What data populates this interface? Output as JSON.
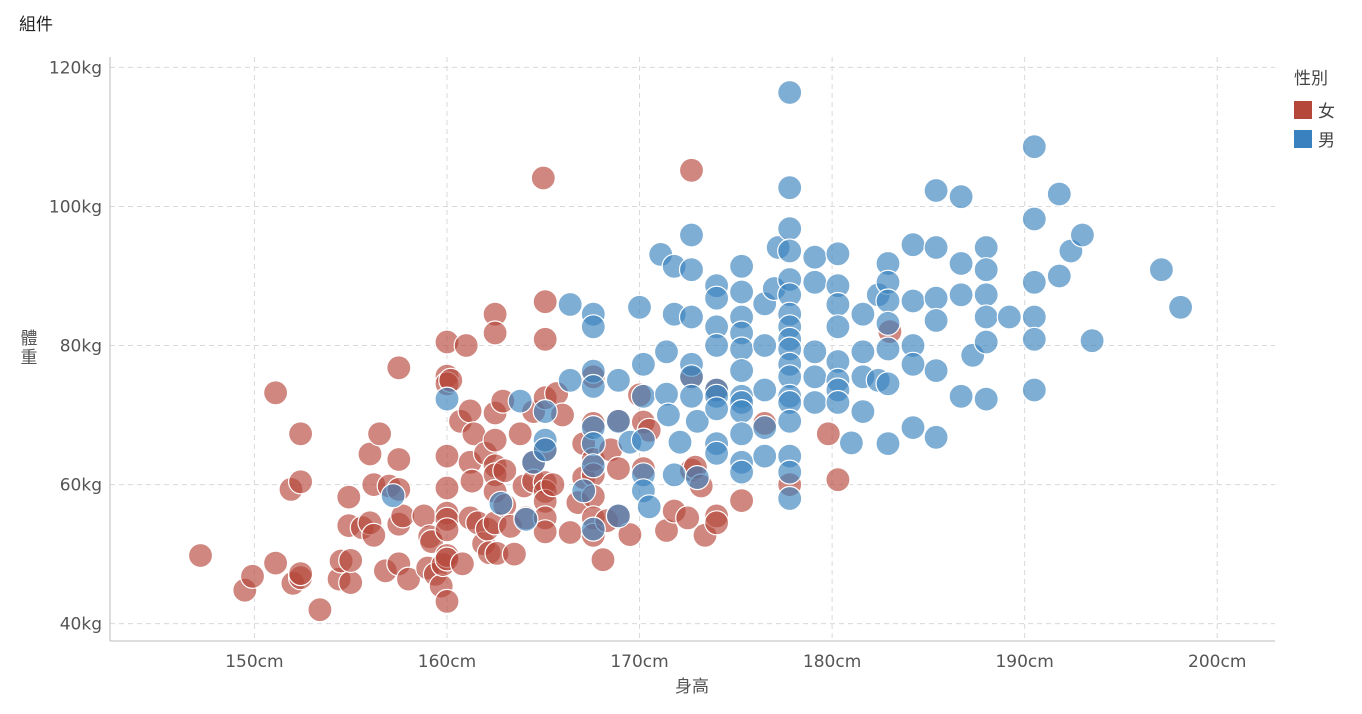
{
  "title": "組件",
  "chart_data": {
    "type": "scatter",
    "xlabel": "身高",
    "ylabel": "體重",
    "x_unit": "cm",
    "y_unit": "kg",
    "xlim": [
      142.5,
      203
    ],
    "ylim": [
      37.5,
      121.5
    ],
    "xticks": [
      150,
      160,
      170,
      180,
      190,
      200
    ],
    "yticks": [
      40,
      60,
      80,
      100,
      120
    ],
    "xtick_labels": [
      "150cm",
      "160cm",
      "170cm",
      "180cm",
      "190cm",
      "200cm"
    ],
    "ytick_labels": [
      "40kg",
      "60kg",
      "80kg",
      "100kg",
      "120kg"
    ],
    "grid": true,
    "legend": {
      "title": "性別",
      "position": "right"
    },
    "series": [
      {
        "name": "女",
        "color": "#b5473a",
        "points": [
          [
            147.2,
            49.8
          ],
          [
            149.5,
            44.8
          ],
          [
            149.9,
            46.8
          ],
          [
            151.1,
            48.7
          ],
          [
            151.1,
            73.2
          ],
          [
            151.9,
            59.3
          ],
          [
            152.0,
            45.8
          ],
          [
            152.4,
            67.3
          ],
          [
            152.4,
            60.4
          ],
          [
            152.4,
            46.6
          ],
          [
            152.4,
            47.2
          ],
          [
            153.4,
            42.0
          ],
          [
            154.4,
            46.4
          ],
          [
            154.5,
            49.0
          ],
          [
            154.9,
            58.2
          ],
          [
            154.9,
            54.1
          ],
          [
            155.0,
            45.9
          ],
          [
            155.0,
            49.1
          ],
          [
            155.6,
            53.8
          ],
          [
            156.0,
            64.4
          ],
          [
            156.0,
            54.5
          ],
          [
            156.2,
            60.0
          ],
          [
            156.2,
            52.7
          ],
          [
            156.5,
            67.3
          ],
          [
            156.8,
            47.6
          ],
          [
            157.0,
            59.8
          ],
          [
            157.5,
            76.8
          ],
          [
            157.5,
            63.6
          ],
          [
            157.5,
            54.3
          ],
          [
            157.5,
            48.6
          ],
          [
            157.5,
            59.3
          ],
          [
            157.7,
            55.5
          ],
          [
            158.0,
            46.4
          ],
          [
            158.8,
            55.5
          ],
          [
            159.0,
            48.0
          ],
          [
            159.1,
            52.5
          ],
          [
            159.2,
            51.8
          ],
          [
            159.4,
            47.1
          ],
          [
            159.7,
            45.4
          ],
          [
            159.8,
            48.5
          ],
          [
            160.0,
            80.5
          ],
          [
            160.0,
            75.6
          ],
          [
            160.0,
            74.5
          ],
          [
            160.0,
            64.1
          ],
          [
            160.0,
            59.5
          ],
          [
            160.0,
            55.9
          ],
          [
            160.0,
            55.0
          ],
          [
            160.0,
            53.5
          ],
          [
            160.0,
            49.8
          ],
          [
            160.0,
            43.2
          ],
          [
            160.0,
            49.3
          ],
          [
            160.2,
            75.0
          ],
          [
            160.7,
            69.1
          ],
          [
            160.8,
            48.6
          ],
          [
            161.0,
            80.0
          ],
          [
            161.2,
            70.6
          ],
          [
            161.2,
            63.2
          ],
          [
            161.2,
            55.2
          ],
          [
            161.3,
            60.5
          ],
          [
            161.4,
            67.3
          ],
          [
            161.6,
            54.5
          ],
          [
            161.9,
            51.5
          ],
          [
            162.0,
            64.5
          ],
          [
            162.1,
            53.6
          ],
          [
            162.2,
            50.2
          ],
          [
            162.5,
            84.5
          ],
          [
            162.5,
            81.8
          ],
          [
            162.5,
            70.3
          ],
          [
            162.5,
            66.4
          ],
          [
            162.5,
            62.7
          ],
          [
            162.5,
            61.4
          ],
          [
            162.5,
            59.0
          ],
          [
            162.5,
            54.5
          ],
          [
            162.6,
            50.1
          ],
          [
            162.9,
            72.0
          ],
          [
            163.0,
            62.0
          ],
          [
            163.0,
            57.0
          ],
          [
            163.3,
            54.0
          ],
          [
            163.5,
            50.0
          ],
          [
            163.8,
            67.3
          ],
          [
            164.0,
            59.8
          ],
          [
            164.1,
            55.2
          ],
          [
            164.5,
            63.2
          ],
          [
            164.5,
            70.5
          ],
          [
            164.5,
            60.5
          ],
          [
            165.0,
            104.1
          ],
          [
            165.1,
            86.3
          ],
          [
            165.1,
            80.9
          ],
          [
            165.1,
            72.5
          ],
          [
            165.1,
            65.0
          ],
          [
            165.1,
            60.3
          ],
          [
            165.1,
            59.0
          ],
          [
            165.1,
            57.6
          ],
          [
            165.1,
            55.2
          ],
          [
            165.1,
            53.2
          ],
          [
            165.5,
            60.0
          ],
          [
            165.7,
            73.1
          ],
          [
            166.0,
            70.0
          ],
          [
            166.4,
            53.1
          ],
          [
            166.8,
            57.4
          ],
          [
            167.1,
            65.9
          ],
          [
            167.1,
            61.0
          ],
          [
            167.6,
            75.5
          ],
          [
            167.6,
            68.8
          ],
          [
            167.6,
            63.6
          ],
          [
            167.6,
            61.4
          ],
          [
            167.6,
            58.3
          ],
          [
            167.6,
            55.2
          ],
          [
            167.6,
            52.7
          ],
          [
            168.1,
            49.2
          ],
          [
            168.3,
            54.8
          ],
          [
            168.5,
            65.0
          ],
          [
            168.9,
            69.2
          ],
          [
            168.9,
            62.3
          ],
          [
            168.9,
            55.5
          ],
          [
            169.5,
            52.8
          ],
          [
            170.0,
            72.9
          ],
          [
            170.2,
            69.0
          ],
          [
            170.2,
            62.3
          ],
          [
            170.5,
            67.8
          ],
          [
            171.4,
            53.4
          ],
          [
            171.8,
            56.2
          ],
          [
            172.5,
            55.2
          ],
          [
            172.7,
            105.2
          ],
          [
            172.7,
            75.3
          ],
          [
            172.7,
            62.1
          ],
          [
            172.9,
            62.5
          ],
          [
            173.4,
            52.7
          ],
          [
            173.2,
            59.8
          ],
          [
            174.0,
            73.6
          ],
          [
            174.0,
            55.5
          ],
          [
            174.0,
            54.5
          ],
          [
            175.3,
            57.7
          ],
          [
            176.5,
            68.8
          ],
          [
            177.8,
            60.0
          ],
          [
            179.8,
            67.3
          ],
          [
            180.3,
            60.7
          ],
          [
            183.0,
            82.0
          ]
        ]
      },
      {
        "name": "男",
        "color": "#3a82bf",
        "points": [
          [
            157.2,
            58.4
          ],
          [
            160.0,
            72.3
          ],
          [
            162.8,
            57.3
          ],
          [
            163.8,
            72.0
          ],
          [
            164.1,
            55.0
          ],
          [
            164.5,
            63.2
          ],
          [
            165.1,
            66.4
          ],
          [
            165.1,
            65.0
          ],
          [
            165.1,
            70.5
          ],
          [
            166.4,
            85.9
          ],
          [
            166.4,
            75.0
          ],
          [
            167.1,
            59.1
          ],
          [
            167.6,
            84.5
          ],
          [
            167.6,
            82.7
          ],
          [
            167.6,
            76.3
          ],
          [
            167.6,
            74.1
          ],
          [
            167.6,
            68.2
          ],
          [
            167.6,
            65.9
          ],
          [
            167.6,
            62.7
          ],
          [
            167.6,
            53.6
          ],
          [
            168.9,
            75.0
          ],
          [
            168.9,
            69.1
          ],
          [
            168.9,
            55.5
          ],
          [
            169.5,
            66.1
          ],
          [
            170.0,
            85.5
          ],
          [
            170.2,
            77.3
          ],
          [
            170.2,
            72.7
          ],
          [
            170.2,
            66.4
          ],
          [
            170.2,
            61.4
          ],
          [
            170.2,
            59.1
          ],
          [
            170.5,
            56.8
          ],
          [
            171.1,
            93.1
          ],
          [
            171.4,
            79.1
          ],
          [
            171.4,
            73.0
          ],
          [
            171.5,
            70.0
          ],
          [
            171.8,
            91.4
          ],
          [
            171.8,
            84.5
          ],
          [
            171.8,
            61.4
          ],
          [
            172.1,
            66.1
          ],
          [
            172.7,
            95.9
          ],
          [
            172.7,
            90.9
          ],
          [
            172.7,
            84.1
          ],
          [
            172.7,
            77.3
          ],
          [
            172.7,
            75.5
          ],
          [
            172.7,
            72.7
          ],
          [
            173.0,
            69.1
          ],
          [
            173.0,
            61.0
          ],
          [
            174.0,
            88.6
          ],
          [
            174.0,
            86.8
          ],
          [
            174.0,
            82.7
          ],
          [
            174.0,
            80.0
          ],
          [
            174.0,
            73.6
          ],
          [
            174.0,
            72.7
          ],
          [
            174.0,
            70.9
          ],
          [
            174.0,
            65.9
          ],
          [
            174.0,
            64.5
          ],
          [
            175.3,
            91.4
          ],
          [
            175.3,
            87.7
          ],
          [
            175.3,
            84.1
          ],
          [
            175.3,
            81.8
          ],
          [
            175.3,
            79.5
          ],
          [
            175.3,
            76.4
          ],
          [
            175.3,
            72.7
          ],
          [
            175.3,
            71.8
          ],
          [
            175.3,
            70.5
          ],
          [
            175.3,
            67.3
          ],
          [
            175.3,
            63.2
          ],
          [
            175.3,
            61.8
          ],
          [
            176.5,
            86.0
          ],
          [
            176.5,
            80.0
          ],
          [
            176.5,
            73.6
          ],
          [
            176.5,
            68.2
          ],
          [
            176.5,
            64.1
          ],
          [
            177.0,
            88.2
          ],
          [
            177.2,
            94.1
          ],
          [
            177.8,
            116.4
          ],
          [
            177.8,
            102.7
          ],
          [
            177.8,
            96.8
          ],
          [
            177.8,
            93.6
          ],
          [
            177.8,
            89.5
          ],
          [
            177.8,
            87.3
          ],
          [
            177.8,
            84.5
          ],
          [
            177.8,
            82.7
          ],
          [
            177.8,
            80.9
          ],
          [
            177.8,
            79.5
          ],
          [
            177.8,
            77.3
          ],
          [
            177.8,
            75.5
          ],
          [
            177.8,
            72.7
          ],
          [
            177.8,
            71.8
          ],
          [
            177.8,
            69.1
          ],
          [
            177.8,
            64.1
          ],
          [
            177.8,
            61.8
          ],
          [
            177.8,
            58.0
          ],
          [
            179.1,
            92.7
          ],
          [
            179.1,
            89.1
          ],
          [
            179.1,
            79.1
          ],
          [
            179.1,
            75.5
          ],
          [
            179.1,
            71.8
          ],
          [
            180.3,
            93.2
          ],
          [
            180.3,
            88.6
          ],
          [
            180.3,
            85.9
          ],
          [
            180.3,
            82.7
          ],
          [
            180.3,
            77.7
          ],
          [
            180.3,
            75.0
          ],
          [
            180.3,
            73.6
          ],
          [
            180.3,
            71.8
          ],
          [
            181.0,
            66.0
          ],
          [
            181.6,
            84.5
          ],
          [
            181.6,
            79.1
          ],
          [
            181.6,
            75.5
          ],
          [
            181.6,
            70.5
          ],
          [
            182.4,
            87.3
          ],
          [
            182.4,
            75.0
          ],
          [
            182.9,
            91.8
          ],
          [
            182.9,
            89.1
          ],
          [
            182.9,
            86.4
          ],
          [
            182.9,
            83.2
          ],
          [
            182.9,
            79.5
          ],
          [
            182.9,
            74.5
          ],
          [
            182.9,
            65.9
          ],
          [
            184.2,
            94.5
          ],
          [
            184.2,
            86.4
          ],
          [
            184.2,
            80.0
          ],
          [
            184.2,
            77.3
          ],
          [
            184.2,
            68.2
          ],
          [
            185.4,
            102.3
          ],
          [
            185.4,
            94.1
          ],
          [
            185.4,
            86.8
          ],
          [
            185.4,
            83.6
          ],
          [
            185.4,
            76.4
          ],
          [
            185.4,
            66.8
          ],
          [
            186.7,
            101.4
          ],
          [
            186.7,
            91.8
          ],
          [
            186.7,
            87.3
          ],
          [
            186.7,
            72.7
          ],
          [
            187.3,
            78.6
          ],
          [
            188.0,
            94.1
          ],
          [
            188.0,
            90.9
          ],
          [
            188.0,
            87.3
          ],
          [
            188.0,
            84.1
          ],
          [
            188.0,
            80.5
          ],
          [
            188.0,
            72.3
          ],
          [
            189.2,
            84.1
          ],
          [
            190.5,
            108.6
          ],
          [
            190.5,
            98.2
          ],
          [
            190.5,
            89.1
          ],
          [
            190.5,
            84.1
          ],
          [
            190.5,
            80.9
          ],
          [
            190.5,
            73.6
          ],
          [
            191.8,
            101.8
          ],
          [
            191.8,
            90.0
          ],
          [
            192.4,
            93.6
          ],
          [
            193.0,
            95.9
          ],
          [
            193.5,
            80.7
          ],
          [
            197.1,
            90.9
          ],
          [
            198.1,
            85.5
          ]
        ]
      }
    ]
  }
}
